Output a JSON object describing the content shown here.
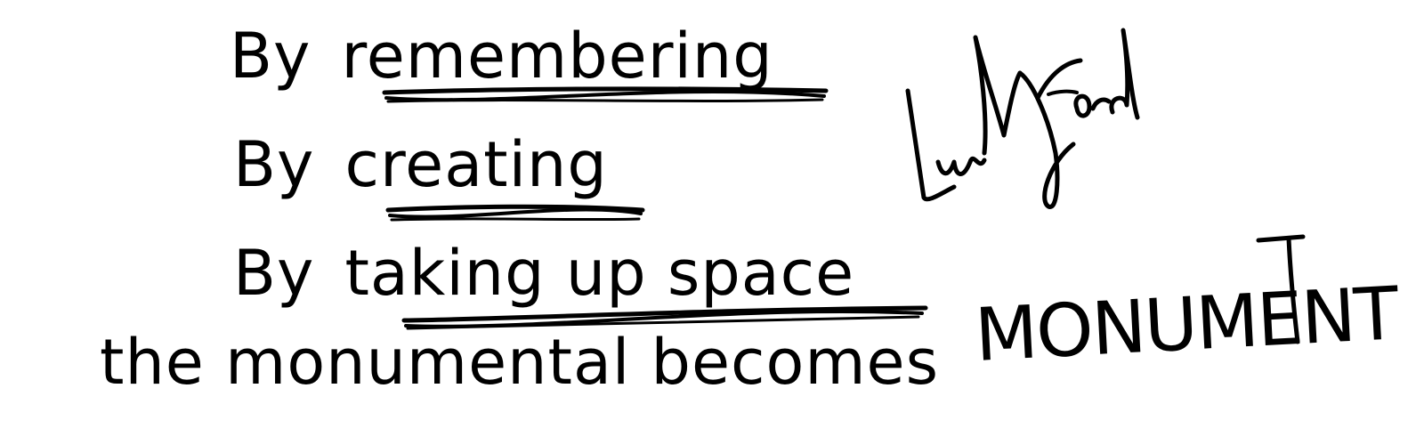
{
  "note": {
    "line_1": {
      "prefix": "By",
      "word": "remembering"
    },
    "line_2": {
      "prefix": "By",
      "word": "creating"
    },
    "line_3": {
      "prefix": "By",
      "words": "taking up space"
    },
    "line_4": {
      "text": "the monumental becomes"
    },
    "emphasis": "MONUMENT",
    "signature_text": "Lindsey Ford"
  },
  "colors": {
    "ink": "#000000",
    "paper": "#ffffff"
  }
}
